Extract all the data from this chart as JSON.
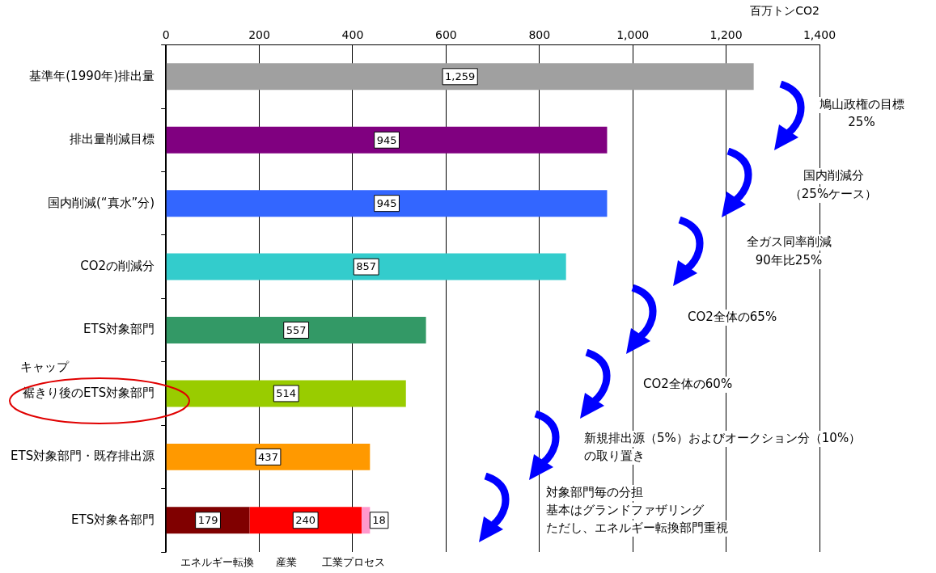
{
  "chart_data": {
    "type": "bar",
    "orientation": "horizontal",
    "stacked": true,
    "xlabel": "百万トンCO2",
    "categories": [
      "基準年(1990年)排出量",
      "排出量削減目標",
      "国内削減(“真水”分)",
      "CO2の削減分",
      "ETS対象部門",
      "裾きり後のETS対象部門",
      "ETS対象部門・既存排出源",
      "ETS対象各部門"
    ],
    "series": [
      {
        "values": [
          1259,
          945,
          945,
          857,
          557,
          514,
          437,
          179
        ],
        "colors": [
          "#a0a0a0",
          "#800080",
          "#3366ff",
          "#33cccc",
          "#339966",
          "#99cc00",
          "#ff9900",
          "#800000"
        ],
        "value_labels": [
          "1,259",
          "945",
          "945",
          "857",
          "557",
          "514",
          "437",
          "179"
        ]
      },
      {
        "values": [
          null,
          null,
          null,
          null,
          null,
          null,
          null,
          240
        ],
        "color": "#ff0000",
        "value_labels": [
          null,
          null,
          null,
          null,
          null,
          null,
          null,
          "240"
        ]
      },
      {
        "values": [
          null,
          null,
          null,
          null,
          null,
          null,
          null,
          18
        ],
        "color": "#ff99cc",
        "value_labels": [
          null,
          null,
          null,
          null,
          null,
          null,
          null,
          "18"
        ]
      }
    ],
    "xlim": [
      0,
      1400
    ],
    "xticks": [
      0,
      200,
      400,
      600,
      800,
      {
        "value": 1000,
        "label": "1,000"
      },
      {
        "value": 1200,
        "label": "1,200"
      },
      {
        "value": 1400,
        "label": "1,400"
      }
    ],
    "grid": "x",
    "legend": false,
    "annotations": [
      "キャップ",
      "鳩山政権の目標",
      "25%",
      "国内削減分",
      "（25%ケース）",
      "全ガス同率削減",
      "90年比25%",
      "CO2全体の65%",
      "CO2全体の60%",
      "新規排出源（5%）およびオークション分（10%）",
      "の取り置き",
      "対象部門毎の分担",
      "基本はグランドファザリング",
      "ただし、エネルギー転換部門重視",
      "エネルギー転換",
      "産業",
      "工業プロセス"
    ]
  }
}
